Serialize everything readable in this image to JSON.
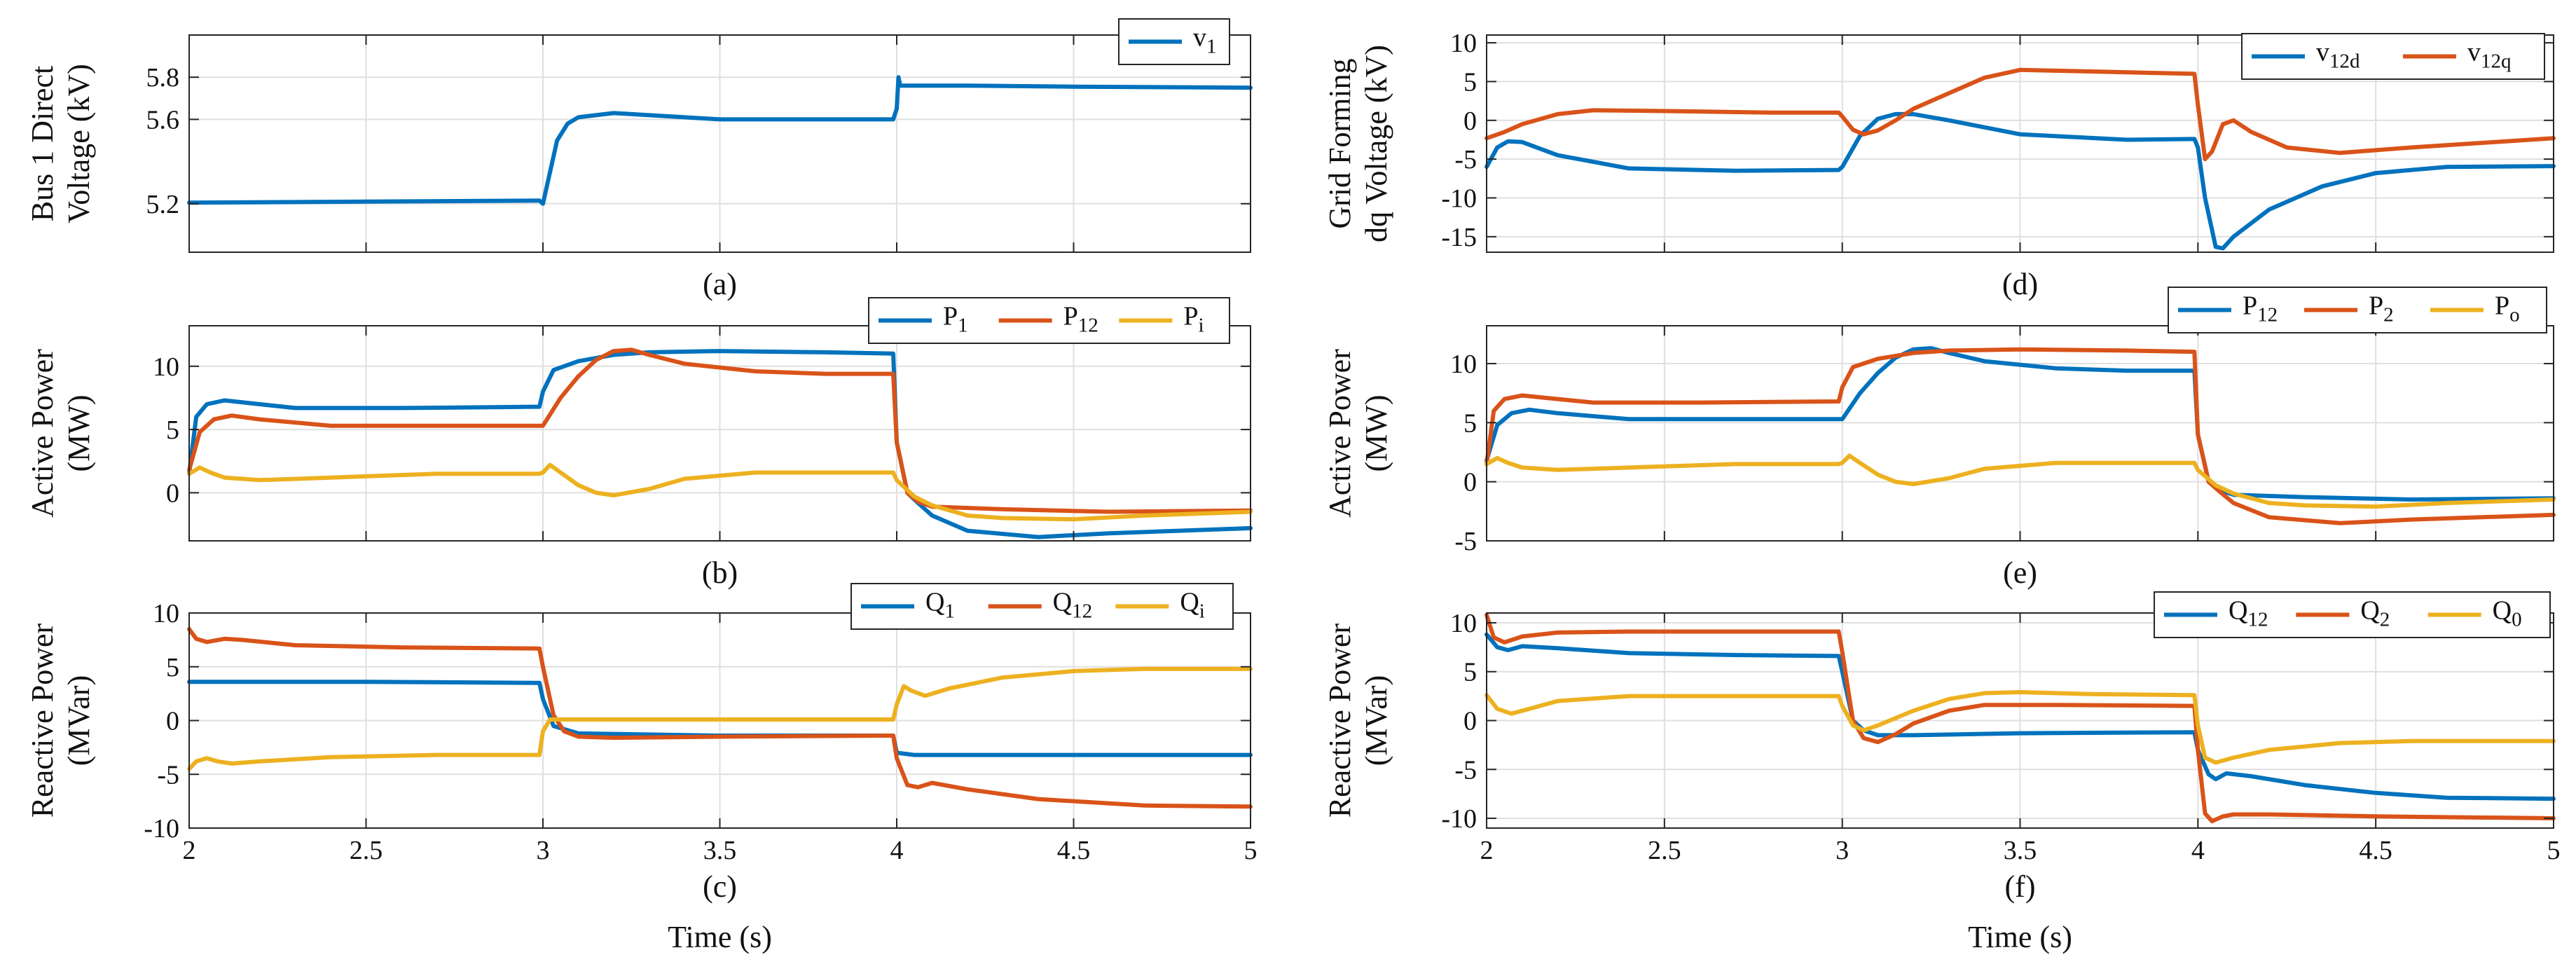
{
  "colors": {
    "blue": "#0072BD",
    "red": "#D95319",
    "yellow": "#EDB120"
  },
  "xlabel": "Time (s)",
  "chart_data": [
    {
      "id": "a",
      "type": "line",
      "caption": "(a)",
      "column": "left",
      "row": 0,
      "ylabel": [
        "Bus 1 Direct",
        "Voltage (kV)"
      ],
      "xlim": [
        2,
        5
      ],
      "ylim": [
        4.97,
        6.0
      ],
      "yticks": [
        5.2,
        5.6,
        5.8
      ],
      "ytick_labels": [
        "5.2",
        "5.6",
        "5.8"
      ],
      "xticks": [
        2,
        2.5,
        3,
        3.5,
        4,
        4.5,
        5
      ],
      "show_xtick_labels": false,
      "series": [
        {
          "name": "v_1",
          "label_main": "v",
          "label_sub": "1",
          "color_key": "blue",
          "x": [
            2.0,
            2.5,
            2.99,
            3.0,
            3.02,
            3.04,
            3.07,
            3.1,
            3.2,
            3.3,
            3.5,
            3.8,
            3.99,
            4.0,
            4.005,
            4.01,
            4.05,
            4.2,
            4.5,
            5.0
          ],
          "y": [
            5.205,
            5.21,
            5.215,
            5.2,
            5.35,
            5.5,
            5.58,
            5.61,
            5.63,
            5.62,
            5.6,
            5.6,
            5.6,
            5.65,
            5.8,
            5.76,
            5.76,
            5.76,
            5.755,
            5.75
          ]
        }
      ]
    },
    {
      "id": "b",
      "type": "line",
      "caption": "(b)",
      "column": "left",
      "row": 1,
      "ylabel": [
        "Active Power",
        "(MW)"
      ],
      "xlim": [
        2,
        5
      ],
      "ylim": [
        -3.8,
        13.2
      ],
      "yticks": [
        0,
        5,
        10
      ],
      "ytick_labels": [
        "0",
        "5",
        "10"
      ],
      "xticks": [
        2,
        2.5,
        3,
        3.5,
        4,
        4.5,
        5
      ],
      "show_xtick_labels": false,
      "series": [
        {
          "name": "P_1",
          "label_main": "P",
          "label_sub": "1",
          "color_key": "blue",
          "x": [
            2.0,
            2.02,
            2.05,
            2.1,
            2.2,
            2.3,
            2.6,
            2.99,
            3.0,
            3.03,
            3.1,
            3.2,
            3.3,
            3.5,
            3.8,
            3.99,
            4.0,
            4.03,
            4.06,
            4.1,
            4.2,
            4.4,
            4.6,
            5.0
          ],
          "y": [
            1.5,
            6.0,
            7.0,
            7.3,
            7.0,
            6.7,
            6.7,
            6.8,
            8.0,
            9.7,
            10.4,
            10.9,
            11.1,
            11.2,
            11.1,
            11.0,
            4.0,
            0.0,
            -0.8,
            -1.8,
            -3.0,
            -3.5,
            -3.2,
            -2.8
          ]
        },
        {
          "name": "P_12",
          "label_main": "P",
          "label_sub": "12",
          "color_key": "red",
          "x": [
            2.0,
            2.03,
            2.07,
            2.12,
            2.2,
            2.4,
            2.99,
            3.0,
            3.05,
            3.1,
            3.15,
            3.2,
            3.25,
            3.3,
            3.4,
            3.6,
            3.8,
            3.99,
            4.0,
            4.03,
            4.06,
            4.1,
            4.3,
            4.6,
            5.0
          ],
          "y": [
            1.8,
            4.8,
            5.8,
            6.1,
            5.8,
            5.3,
            5.3,
            5.3,
            7.5,
            9.2,
            10.5,
            11.2,
            11.3,
            10.9,
            10.2,
            9.6,
            9.4,
            9.4,
            4.0,
            0.0,
            -0.7,
            -1.1,
            -1.3,
            -1.5,
            -1.4
          ]
        },
        {
          "name": "P_i",
          "label_main": "P",
          "label_sub": "i",
          "color_key": "yellow",
          "x": [
            2.0,
            2.03,
            2.06,
            2.1,
            2.2,
            2.4,
            2.7,
            2.99,
            3.0,
            3.02,
            3.05,
            3.1,
            3.15,
            3.2,
            3.3,
            3.4,
            3.6,
            3.8,
            3.99,
            4.0,
            4.05,
            4.1,
            4.2,
            4.3,
            4.5,
            4.7,
            5.0
          ],
          "y": [
            1.5,
            2.0,
            1.6,
            1.2,
            1.0,
            1.2,
            1.5,
            1.5,
            1.6,
            2.2,
            1.6,
            0.6,
            0.0,
            -0.2,
            0.3,
            1.1,
            1.6,
            1.6,
            1.6,
            1.0,
            -0.3,
            -1.0,
            -1.8,
            -2.0,
            -2.1,
            -1.8,
            -1.5
          ]
        }
      ]
    },
    {
      "id": "c",
      "type": "line",
      "caption": "(c)",
      "column": "left",
      "row": 2,
      "ylabel": [
        "Reactive Power",
        "(MVar)"
      ],
      "xlim": [
        2,
        5
      ],
      "ylim": [
        -10,
        10
      ],
      "yticks": [
        -10,
        -5,
        0,
        5,
        10
      ],
      "ytick_labels": [
        "-10",
        "-5",
        "0",
        "5",
        "10"
      ],
      "xticks": [
        2,
        2.5,
        3,
        3.5,
        4,
        4.5,
        5
      ],
      "show_xtick_labels": true,
      "xtick_labels": [
        "2",
        "2.5",
        "3",
        "3.5",
        "4",
        "4.5",
        "5"
      ],
      "series": [
        {
          "name": "Q_1",
          "label_main": "Q",
          "label_sub": "1",
          "color_key": "blue",
          "x": [
            2.0,
            2.5,
            2.99,
            3.0,
            3.03,
            3.1,
            3.5,
            3.99,
            4.0,
            4.05,
            4.5,
            5.0
          ],
          "y": [
            3.6,
            3.6,
            3.5,
            2.0,
            -0.5,
            -1.2,
            -1.4,
            -1.4,
            -3.0,
            -3.2,
            -3.2,
            -3.2
          ]
        },
        {
          "name": "Q_12",
          "label_main": "Q",
          "label_sub": "12",
          "color_key": "red",
          "x": [
            2.0,
            2.02,
            2.05,
            2.1,
            2.15,
            2.3,
            2.6,
            2.99,
            3.0,
            3.03,
            3.06,
            3.1,
            3.2,
            3.5,
            3.99,
            4.0,
            4.03,
            4.06,
            4.1,
            4.2,
            4.4,
            4.7,
            5.0
          ],
          "y": [
            8.5,
            7.6,
            7.3,
            7.6,
            7.5,
            7.0,
            6.8,
            6.7,
            5.0,
            0.5,
            -1.0,
            -1.5,
            -1.6,
            -1.5,
            -1.4,
            -3.5,
            -6.0,
            -6.2,
            -5.8,
            -6.4,
            -7.3,
            -7.9,
            -8.0
          ]
        },
        {
          "name": "Q_i",
          "label_main": "Q",
          "label_sub": "i",
          "color_key": "yellow",
          "x": [
            2.0,
            2.02,
            2.05,
            2.08,
            2.12,
            2.2,
            2.4,
            2.7,
            2.99,
            3.0,
            3.02,
            3.5,
            3.99,
            4.0,
            4.02,
            4.04,
            4.08,
            4.15,
            4.3,
            4.5,
            4.7,
            5.0
          ],
          "y": [
            -4.5,
            -3.8,
            -3.5,
            -3.8,
            -4.0,
            -3.8,
            -3.4,
            -3.2,
            -3.2,
            -1.0,
            0.1,
            0.1,
            0.1,
            1.5,
            3.2,
            2.8,
            2.3,
            3.0,
            4.0,
            4.6,
            4.8,
            4.8
          ]
        }
      ]
    },
    {
      "id": "d",
      "type": "line",
      "caption": "(d)",
      "column": "right",
      "row": 0,
      "ylabel": [
        "Grid Forming",
        "dq Voltage (kV)"
      ],
      "xlim": [
        2,
        5
      ],
      "ylim": [
        -17,
        11
      ],
      "yticks": [
        -15,
        -10,
        -5,
        0,
        5,
        10
      ],
      "ytick_labels": [
        "-15",
        "-10",
        "-5",
        "0",
        "5",
        "10"
      ],
      "xticks": [
        2,
        2.5,
        3,
        3.5,
        4,
        4.5,
        5
      ],
      "show_xtick_labels": false,
      "series": [
        {
          "name": "v_12d",
          "label_main": "v",
          "label_sub": "12d",
          "color_key": "blue",
          "x": [
            2.0,
            2.03,
            2.06,
            2.1,
            2.2,
            2.4,
            2.7,
            2.99,
            3.0,
            3.05,
            3.1,
            3.15,
            3.2,
            3.3,
            3.5,
            3.8,
            3.99,
            4.0,
            4.02,
            4.05,
            4.07,
            4.1,
            4.2,
            4.35,
            4.5,
            4.7,
            5.0
          ],
          "y": [
            -6.0,
            -3.5,
            -2.7,
            -2.8,
            -4.5,
            -6.2,
            -6.5,
            -6.4,
            -6.0,
            -2.0,
            0.2,
            0.8,
            0.8,
            0.0,
            -1.8,
            -2.5,
            -2.4,
            -3.5,
            -10.0,
            -16.3,
            -16.5,
            -15.0,
            -11.5,
            -8.5,
            -6.8,
            -6.0,
            -5.9
          ]
        },
        {
          "name": "v_12q",
          "label_main": "v",
          "label_sub": "12q",
          "color_key": "red",
          "x": [
            2.0,
            2.05,
            2.1,
            2.2,
            2.3,
            2.5,
            2.8,
            2.99,
            3.0,
            3.03,
            3.06,
            3.1,
            3.15,
            3.2,
            3.3,
            3.4,
            3.5,
            3.7,
            3.99,
            4.0,
            4.02,
            4.04,
            4.07,
            4.1,
            4.15,
            4.25,
            4.4,
            4.6,
            5.0
          ],
          "y": [
            -2.3,
            -1.5,
            -0.5,
            0.8,
            1.3,
            1.2,
            1.0,
            1.0,
            0.5,
            -1.2,
            -1.8,
            -1.3,
            0.0,
            1.5,
            3.5,
            5.5,
            6.5,
            6.3,
            6.0,
            2.0,
            -5.0,
            -4.0,
            -0.5,
            0.0,
            -1.5,
            -3.5,
            -4.2,
            -3.5,
            -2.3
          ]
        }
      ]
    },
    {
      "id": "e",
      "type": "line",
      "caption": "(e)",
      "column": "right",
      "row": 1,
      "ylabel": [
        "Active Power",
        "(MW)"
      ],
      "xlim": [
        2,
        5
      ],
      "ylim": [
        -5,
        13.2
      ],
      "yticks": [
        -5,
        0,
        5,
        10
      ],
      "ytick_labels": [
        "-5",
        "0",
        "5",
        "10"
      ],
      "xticks": [
        2,
        2.5,
        3,
        3.5,
        4,
        4.5,
        5
      ],
      "show_xtick_labels": false,
      "series": [
        {
          "name": "P_12",
          "label_main": "P",
          "label_sub": "12",
          "color_key": "blue",
          "x": [
            2.0,
            2.03,
            2.07,
            2.12,
            2.2,
            2.4,
            2.99,
            3.0,
            3.05,
            3.1,
            3.15,
            3.2,
            3.25,
            3.3,
            3.4,
            3.6,
            3.8,
            3.99,
            4.0,
            4.03,
            4.06,
            4.1,
            4.3,
            4.6,
            5.0
          ],
          "y": [
            1.8,
            4.8,
            5.8,
            6.1,
            5.8,
            5.3,
            5.3,
            5.3,
            7.5,
            9.2,
            10.5,
            11.2,
            11.3,
            10.9,
            10.2,
            9.6,
            9.4,
            9.4,
            4.0,
            0.0,
            -0.7,
            -1.1,
            -1.3,
            -1.5,
            -1.4
          ]
        },
        {
          "name": "P_2",
          "label_main": "P",
          "label_sub": "2",
          "color_key": "red",
          "x": [
            2.0,
            2.02,
            2.05,
            2.1,
            2.2,
            2.3,
            2.6,
            2.99,
            3.0,
            3.03,
            3.1,
            3.2,
            3.3,
            3.5,
            3.8,
            3.99,
            4.0,
            4.03,
            4.06,
            4.1,
            4.2,
            4.4,
            4.6,
            5.0
          ],
          "y": [
            1.5,
            6.0,
            7.0,
            7.3,
            7.0,
            6.7,
            6.7,
            6.8,
            8.0,
            9.7,
            10.4,
            10.9,
            11.1,
            11.2,
            11.1,
            11.0,
            4.0,
            0.0,
            -0.8,
            -1.8,
            -3.0,
            -3.5,
            -3.2,
            -2.8
          ]
        },
        {
          "name": "P_o",
          "label_main": "P",
          "label_sub": "o",
          "color_key": "yellow",
          "x": [
            2.0,
            2.03,
            2.06,
            2.1,
            2.2,
            2.4,
            2.7,
            2.99,
            3.0,
            3.02,
            3.05,
            3.1,
            3.15,
            3.2,
            3.3,
            3.4,
            3.6,
            3.8,
            3.99,
            4.0,
            4.05,
            4.1,
            4.2,
            4.3,
            4.5,
            4.7,
            5.0
          ],
          "y": [
            1.5,
            2.0,
            1.6,
            1.2,
            1.0,
            1.2,
            1.5,
            1.5,
            1.6,
            2.2,
            1.6,
            0.6,
            0.0,
            -0.2,
            0.3,
            1.1,
            1.6,
            1.6,
            1.6,
            1.0,
            -0.3,
            -1.0,
            -1.8,
            -2.0,
            -2.1,
            -1.8,
            -1.5
          ]
        }
      ]
    },
    {
      "id": "f",
      "type": "line",
      "caption": "(f)",
      "column": "right",
      "row": 2,
      "ylabel": [
        "Reactive Power",
        "(MVar)"
      ],
      "xlim": [
        2,
        5
      ],
      "ylim": [
        -11,
        11
      ],
      "yticks": [
        -10,
        -5,
        0,
        5,
        10
      ],
      "ytick_labels": [
        "-10",
        "-5",
        "0",
        "5",
        "10"
      ],
      "xticks": [
        2,
        2.5,
        3,
        3.5,
        4,
        4.5,
        5
      ],
      "show_xtick_labels": true,
      "xtick_labels": [
        "2",
        "2.5",
        "3",
        "3.5",
        "4",
        "4.5",
        "5"
      ],
      "series": [
        {
          "name": "Q_12",
          "label_main": "Q",
          "label_sub": "12",
          "color_key": "blue",
          "x": [
            2.0,
            2.03,
            2.06,
            2.1,
            2.2,
            2.4,
            2.7,
            2.99,
            3.0,
            3.03,
            3.06,
            3.1,
            3.2,
            3.5,
            3.99,
            4.0,
            4.03,
            4.05,
            4.08,
            4.15,
            4.3,
            4.5,
            4.7,
            5.0
          ],
          "y": [
            8.8,
            7.5,
            7.2,
            7.6,
            7.4,
            6.9,
            6.7,
            6.6,
            5.0,
            0.0,
            -1.0,
            -1.5,
            -1.5,
            -1.3,
            -1.2,
            -3.0,
            -5.5,
            -6.0,
            -5.4,
            -5.7,
            -6.6,
            -7.4,
            -7.9,
            -8.0
          ]
        },
        {
          "name": "Q_2",
          "label_main": "Q",
          "label_sub": "2",
          "color_key": "red",
          "x": [
            2.0,
            2.02,
            2.05,
            2.1,
            2.2,
            2.4,
            2.99,
            3.0,
            3.03,
            3.06,
            3.1,
            3.15,
            3.2,
            3.3,
            3.4,
            3.6,
            3.99,
            4.0,
            4.02,
            4.04,
            4.07,
            4.1,
            4.2,
            4.5,
            5.0
          ],
          "y": [
            10.8,
            8.5,
            8.0,
            8.6,
            9.0,
            9.1,
            9.1,
            7.0,
            0.0,
            -1.8,
            -2.2,
            -1.4,
            -0.3,
            1.0,
            1.6,
            1.6,
            1.5,
            -3.0,
            -9.5,
            -10.3,
            -9.8,
            -9.6,
            -9.6,
            -9.8,
            -10.0
          ]
        },
        {
          "name": "Q_0",
          "label_main": "Q",
          "label_sub": "0",
          "color_key": "yellow",
          "x": [
            2.0,
            2.03,
            2.07,
            2.12,
            2.2,
            2.4,
            2.7,
            2.99,
            3.0,
            3.03,
            3.06,
            3.1,
            3.2,
            3.3,
            3.4,
            3.5,
            3.7,
            3.99,
            4.0,
            4.02,
            4.05,
            4.1,
            4.2,
            4.4,
            4.6,
            5.0
          ],
          "y": [
            2.6,
            1.2,
            0.7,
            1.2,
            2.0,
            2.5,
            2.5,
            2.5,
            1.5,
            -0.5,
            -1.0,
            -0.5,
            1.0,
            2.2,
            2.8,
            2.9,
            2.7,
            2.6,
            -0.5,
            -3.8,
            -4.3,
            -3.8,
            -3.0,
            -2.3,
            -2.1,
            -2.1
          ]
        }
      ]
    }
  ]
}
